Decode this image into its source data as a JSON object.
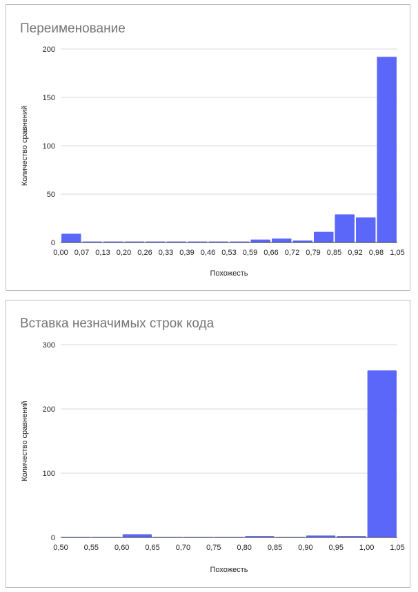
{
  "chart_data": [
    {
      "type": "bar",
      "title": "Переименование",
      "xlabel": "Похожесть",
      "ylabel": "Количество сравнений",
      "color": "#5b67f8",
      "ylim": [
        0,
        200
      ],
      "y_ticks": [
        0,
        50,
        100,
        150,
        200
      ],
      "x_tick_labels": [
        "0,00",
        "0,07",
        "0,13",
        "0,20",
        "0,26",
        "0,33",
        "0,39",
        "0,46",
        "0,53",
        "0,59",
        "0,66",
        "0,72",
        "0,79",
        "0,85",
        "0,92",
        "0,98",
        "1,05"
      ],
      "values": [
        9,
        1,
        1,
        1,
        1,
        1,
        1,
        1,
        1,
        3,
        4,
        2,
        11,
        29,
        26,
        192
      ],
      "grid": true
    },
    {
      "type": "bar",
      "title": "Вставка незначимых строк кода",
      "xlabel": "Похожесть",
      "ylabel": "Количество сравнений",
      "color": "#5b67f8",
      "ylim": [
        0,
        300
      ],
      "y_ticks": [
        0,
        100,
        200,
        300
      ],
      "x_tick_labels": [
        "0,50",
        "0,55",
        "0,60",
        "0,65",
        "0,70",
        "0,75",
        "0,80",
        "0,85",
        "0,90",
        "0,95",
        "1,00",
        "1,05"
      ],
      "values": [
        1,
        1,
        5,
        1,
        1,
        1,
        2,
        1,
        3,
        2,
        260
      ],
      "grid": true
    }
  ]
}
